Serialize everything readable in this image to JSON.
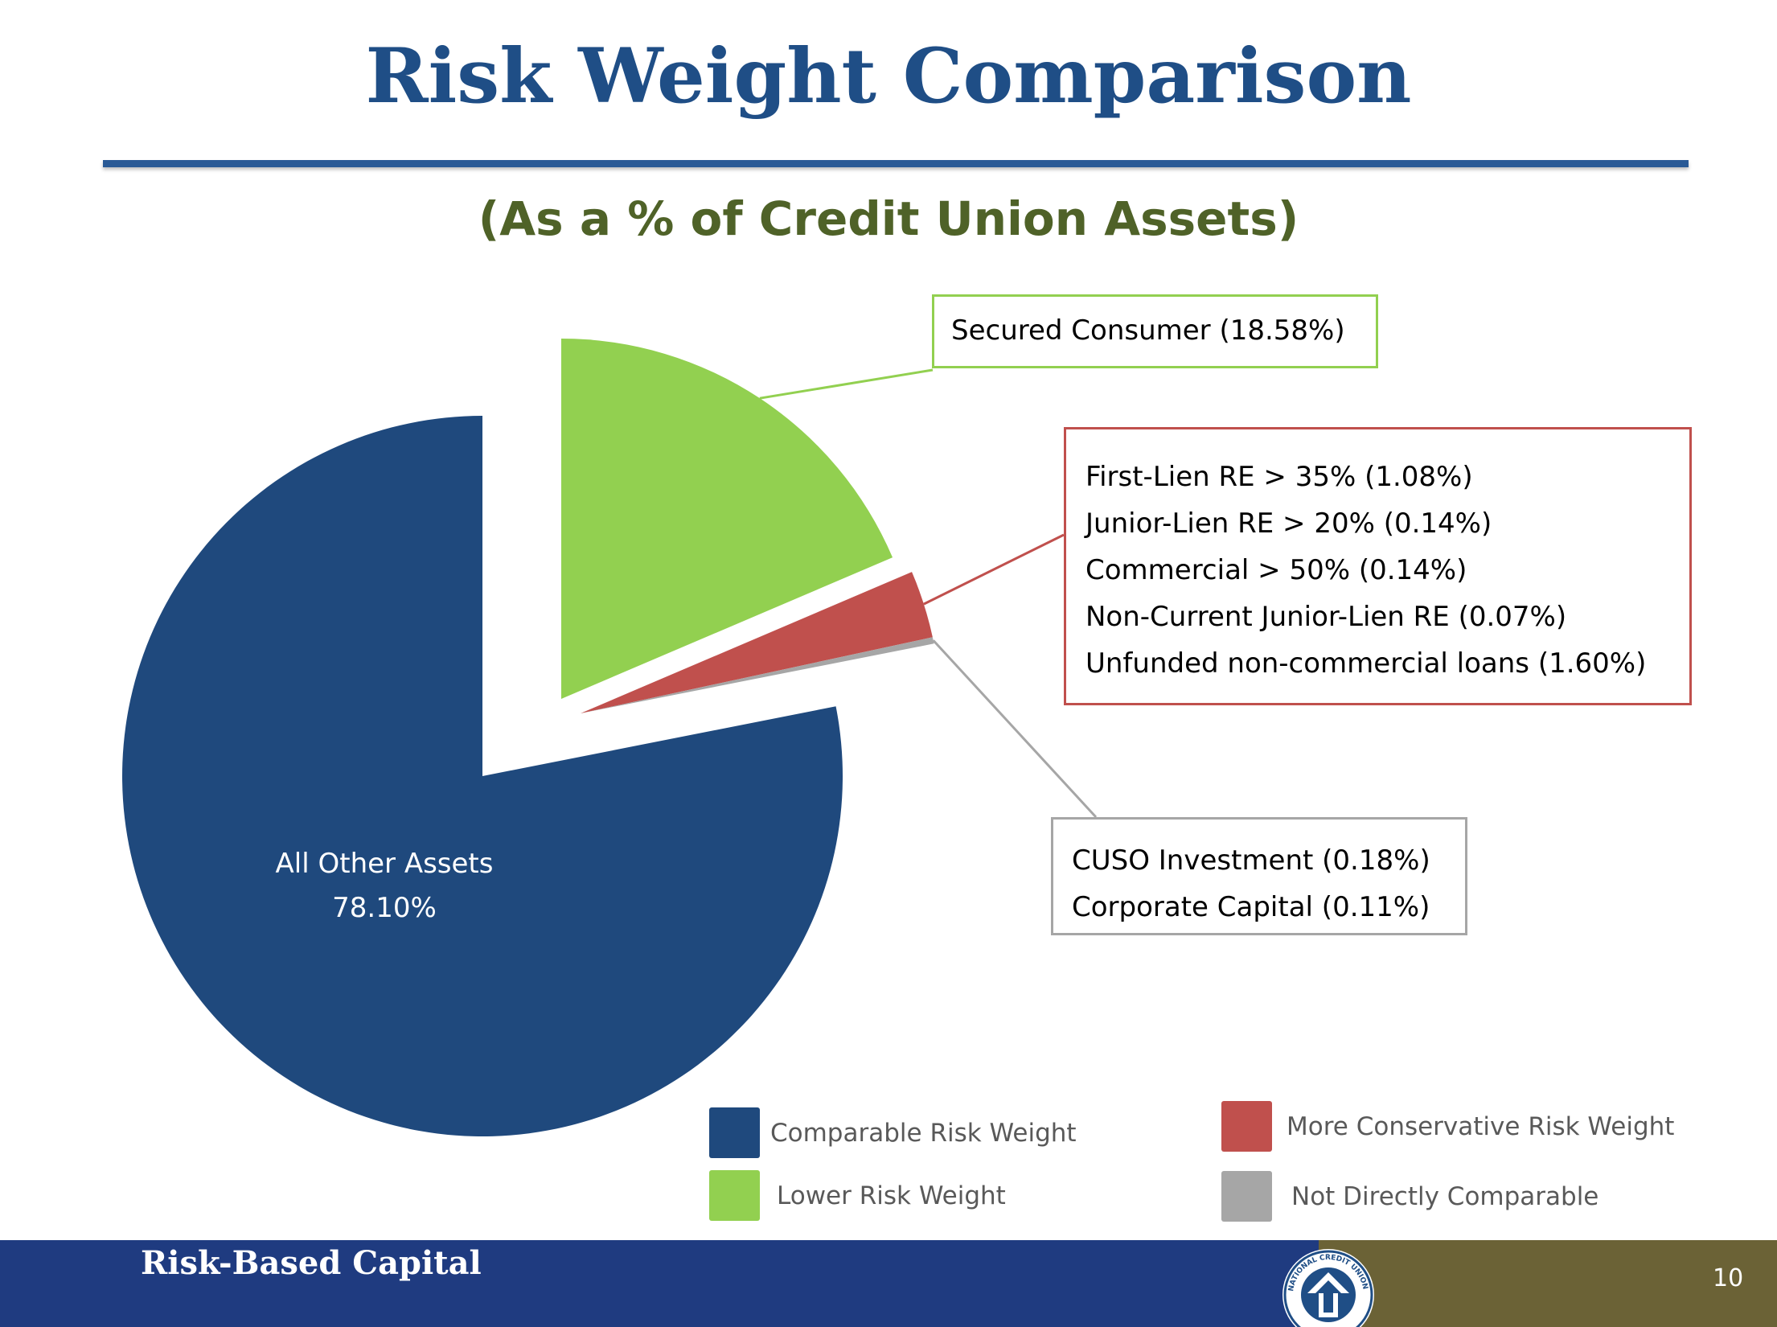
{
  "slide": {
    "title": "Risk Weight Comparison",
    "subtitle": "(As a % of Credit Union Assets)",
    "footer_text": "Risk-Based Capital",
    "page_number": "10",
    "logo_text": "NATIONAL CREDIT UNION ADMINISTRATION"
  },
  "callouts": {
    "secured_consumer": "Secured Consumer (18.58%)",
    "conservative": [
      "First-Lien RE > 35% (1.08%)",
      "Junior-Lien RE > 20% (0.14%)",
      "Commercial > 50% (0.14%)",
      "Non-Current Junior-Lien RE (0.07%)",
      "Unfunded non-commercial loans (1.60%)"
    ],
    "not_comparable": [
      "CUSO Investment (0.18%)",
      "Corporate Capital (0.11%)"
    ]
  },
  "legend": {
    "comparable": "Comparable Risk Weight",
    "lower": "Lower Risk Weight",
    "conservative": "More Conservative Risk Weight",
    "not_comparable": "Not Directly Comparable"
  },
  "colors": {
    "title": "#1f4e86",
    "subtitle": "#4f6228",
    "comparable": "#1f497d",
    "lower": "#92d050",
    "conservative": "#c0504d",
    "not_comparable": "#a6a6a6",
    "footer_blue": "#1f3b80",
    "footer_olive": "#6b6236"
  },
  "chart_data": {
    "type": "pie",
    "title": "Risk Weight Comparison",
    "subtitle": "(As a % of Credit Union Assets)",
    "slices": [
      {
        "name": "Lower Risk Weight",
        "label": "Secured Consumer",
        "value": 18.58,
        "color": "#92d050",
        "exploded": true
      },
      {
        "name": "More Conservative Risk Weight",
        "label": "First-Lien RE > 35%, Junior-Lien RE > 20%, Commercial > 50%, Non-Current Junior-Lien RE, Unfunded non-commercial loans",
        "value": 3.03,
        "color": "#c0504d",
        "exploded": true
      },
      {
        "name": "Not Directly Comparable",
        "label": "CUSO Investment, Corporate Capital",
        "value": 0.29,
        "color": "#a6a6a6",
        "exploded": true
      },
      {
        "name": "Comparable Risk Weight",
        "label": "All Other Assets",
        "value": 78.1,
        "value_label": "78.10%",
        "color": "#1f497d",
        "exploded": false
      }
    ],
    "data_label": {
      "line1": "All Other Assets",
      "line2": "78.10%"
    },
    "legend_position": "bottom"
  }
}
